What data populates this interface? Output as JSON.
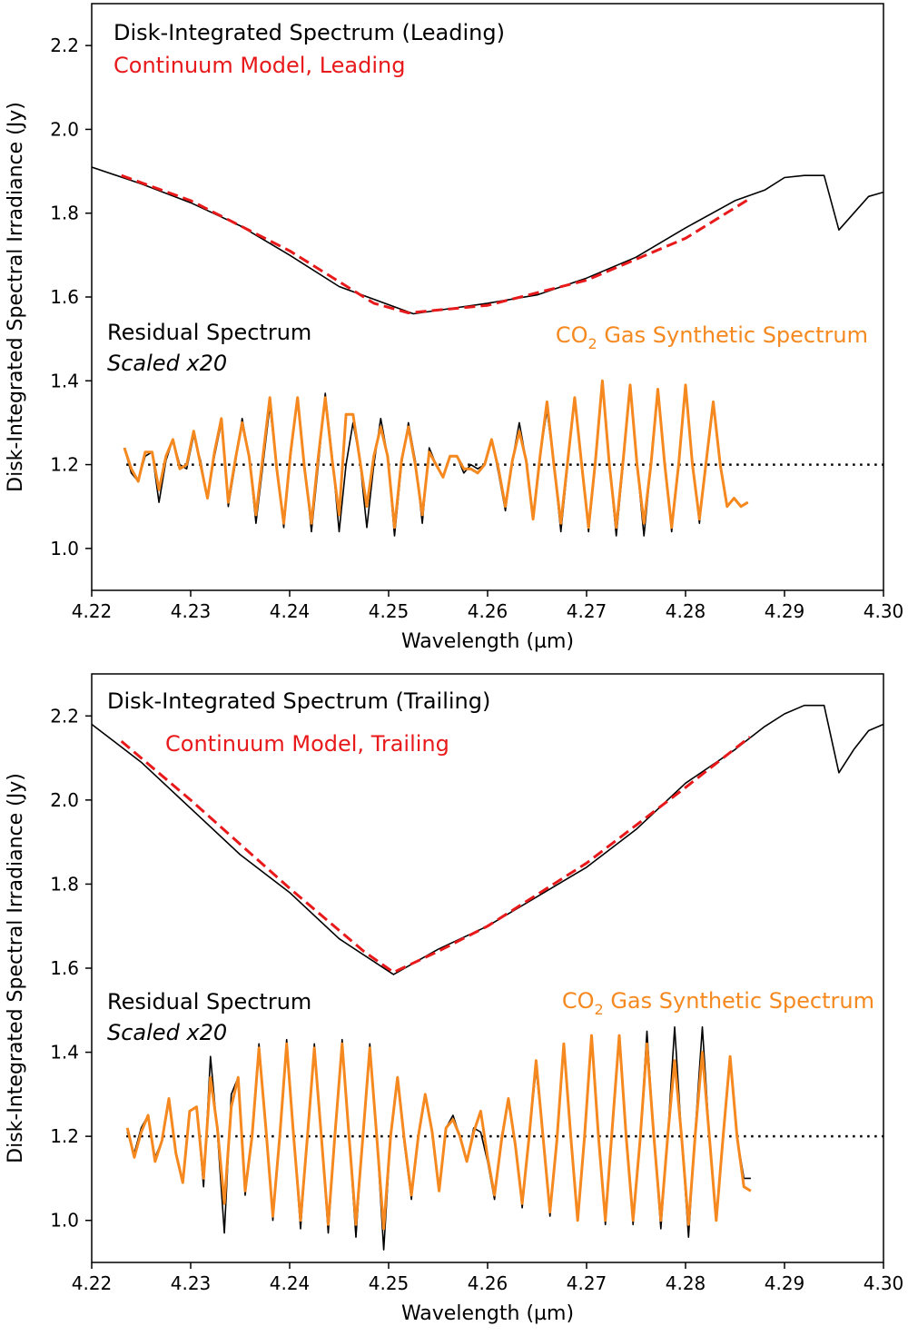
{
  "colors": {
    "observed": "#000000",
    "continuum": "#e8191a",
    "synthetic": "#f5891f",
    "baseline": "#000000"
  },
  "shared": {
    "ylabel": "Disk-Integrated Spectral Irradiance (Jy)",
    "xlabel": "Wavelength (µm)",
    "xticks": [
      "4.22",
      "4.23",
      "4.24",
      "4.25",
      "4.26",
      "4.27",
      "4.28",
      "4.29",
      "4.30"
    ],
    "yticks": [
      "1.0",
      "1.2",
      "1.4",
      "1.6",
      "1.8",
      "2.0",
      "2.2"
    ]
  },
  "chart_data": [
    {
      "type": "line",
      "xlabel": "Wavelength (µm)",
      "ylabel": "Disk-Integrated Spectral Irradiance (Jy)",
      "xlim": [
        4.22,
        4.3
      ],
      "ylim": [
        0.9,
        2.3
      ],
      "grid": false,
      "legend": "text annotations",
      "annotations": {
        "spectrum": "Disk-Integrated Spectrum (Leading)",
        "continuum": "Continuum Model, Leading",
        "residual": "Residual Spectrum",
        "scaled": "Scaled x20",
        "co2": "CO",
        "co2_sub": "2",
        "co2_rest": " Gas Synthetic Spectrum"
      },
      "baseline": 1.2,
      "series": [
        {
          "role": "spectrum",
          "x": [
            4.22,
            4.225,
            4.23,
            4.235,
            4.24,
            4.245,
            4.2525,
            4.26,
            4.265,
            4.27,
            4.275,
            4.28,
            4.285,
            4.288,
            4.29,
            4.292,
            4.294,
            4.2955,
            4.297,
            4.2985,
            4.3
          ],
          "y": [
            1.91,
            1.87,
            1.825,
            1.77,
            1.7,
            1.625,
            1.56,
            1.585,
            1.605,
            1.645,
            1.695,
            1.765,
            1.83,
            1.855,
            1.885,
            1.89,
            1.89,
            1.76,
            1.8,
            1.84,
            1.85
          ]
        },
        {
          "role": "continuum",
          "x": [
            4.223,
            4.23,
            4.24,
            4.2485,
            4.252,
            4.26,
            4.27,
            4.28,
            4.2865
          ],
          "y": [
            1.89,
            1.83,
            1.71,
            1.585,
            1.562,
            1.58,
            1.64,
            1.74,
            1.835
          ]
        },
        {
          "role": "residual",
          "x": [
            4.2233,
            4.224,
            4.2247,
            4.2254,
            4.2261,
            4.2268,
            4.2275,
            4.2282,
            4.2289,
            4.2296,
            4.2303,
            4.231,
            4.2317,
            4.2324,
            4.2331,
            4.2338,
            4.2345,
            4.2352,
            4.2359,
            4.2366,
            4.2373,
            4.238,
            4.2387,
            4.2394,
            4.2401,
            4.2408,
            4.2415,
            4.2422,
            4.2429,
            4.2436,
            4.2443,
            4.245,
            4.2457,
            4.2464,
            4.2471,
            4.2478,
            4.2485,
            4.2492,
            4.2499,
            4.2506,
            4.2513,
            4.252,
            4.2527,
            4.2534,
            4.2541,
            4.2548,
            4.2555,
            4.2562,
            4.2569,
            4.2576,
            4.2583,
            4.259,
            4.2597,
            4.2604,
            4.2611,
            4.2618,
            4.2625,
            4.2632,
            4.2639,
            4.2646,
            4.2653,
            4.266,
            4.2667,
            4.2674,
            4.2681,
            4.2688,
            4.2695,
            4.2702,
            4.2709,
            4.2716,
            4.2723,
            4.273,
            4.2737,
            4.2744,
            4.2751,
            4.2758,
            4.2765,
            4.2772,
            4.2779,
            4.2786,
            4.2793,
            4.28,
            4.2807,
            4.2814,
            4.2821,
            4.2828,
            4.2835,
            4.2842,
            4.2849,
            4.2856,
            4.2863
          ],
          "y": [
            1.24,
            1.18,
            1.16,
            1.22,
            1.23,
            1.11,
            1.21,
            1.26,
            1.2,
            1.19,
            1.27,
            1.21,
            1.12,
            1.22,
            1.3,
            1.1,
            1.2,
            1.31,
            1.22,
            1.06,
            1.2,
            1.34,
            1.19,
            1.05,
            1.22,
            1.36,
            1.2,
            1.04,
            1.2,
            1.37,
            1.22,
            1.04,
            1.2,
            1.3,
            1.21,
            1.05,
            1.2,
            1.31,
            1.22,
            1.03,
            1.2,
            1.3,
            1.21,
            1.06,
            1.24,
            1.2,
            1.17,
            1.22,
            1.22,
            1.18,
            1.2,
            1.19,
            1.2,
            1.26,
            1.18,
            1.09,
            1.21,
            1.3,
            1.21,
            1.08,
            1.22,
            1.33,
            1.2,
            1.04,
            1.2,
            1.36,
            1.2,
            1.04,
            1.2,
            1.39,
            1.2,
            1.03,
            1.2,
            1.39,
            1.2,
            1.03,
            1.2,
            1.37,
            1.2,
            1.04,
            1.2,
            1.38,
            1.2,
            1.06,
            1.21,
            1.34,
            1.2,
            1.1,
            1.12,
            1.1,
            1.11
          ]
        },
        {
          "role": "synthetic",
          "x": [
            4.2233,
            4.224,
            4.2247,
            4.2254,
            4.2261,
            4.2268,
            4.2275,
            4.2282,
            4.2289,
            4.2296,
            4.2303,
            4.231,
            4.2317,
            4.2324,
            4.2331,
            4.2338,
            4.2345,
            4.2352,
            4.2359,
            4.2366,
            4.2373,
            4.238,
            4.2387,
            4.2394,
            4.2401,
            4.2408,
            4.2415,
            4.2422,
            4.2429,
            4.2436,
            4.2443,
            4.245,
            4.2457,
            4.2464,
            4.2471,
            4.2478,
            4.2485,
            4.2492,
            4.2499,
            4.2506,
            4.2513,
            4.252,
            4.2527,
            4.2534,
            4.2541,
            4.2548,
            4.2555,
            4.2562,
            4.2569,
            4.2576,
            4.2583,
            4.259,
            4.2597,
            4.2604,
            4.2611,
            4.2618,
            4.2625,
            4.2632,
            4.2639,
            4.2646,
            4.2653,
            4.266,
            4.2667,
            4.2674,
            4.2681,
            4.2688,
            4.2695,
            4.2702,
            4.2709,
            4.2716,
            4.2723,
            4.273,
            4.2737,
            4.2744,
            4.2751,
            4.2758,
            4.2765,
            4.2772,
            4.2779,
            4.2786,
            4.2793,
            4.28,
            4.2807,
            4.2814,
            4.2821,
            4.2828,
            4.2835,
            4.2842,
            4.2849,
            4.2856,
            4.2863
          ],
          "y": [
            1.24,
            1.19,
            1.16,
            1.23,
            1.23,
            1.14,
            1.22,
            1.26,
            1.19,
            1.2,
            1.28,
            1.2,
            1.12,
            1.23,
            1.31,
            1.11,
            1.21,
            1.3,
            1.22,
            1.08,
            1.22,
            1.36,
            1.19,
            1.06,
            1.23,
            1.36,
            1.19,
            1.06,
            1.22,
            1.36,
            1.21,
            1.08,
            1.32,
            1.32,
            1.21,
            1.1,
            1.22,
            1.29,
            1.22,
            1.05,
            1.21,
            1.29,
            1.2,
            1.08,
            1.23,
            1.2,
            1.17,
            1.22,
            1.22,
            1.19,
            1.19,
            1.18,
            1.2,
            1.26,
            1.19,
            1.1,
            1.21,
            1.28,
            1.21,
            1.07,
            1.22,
            1.35,
            1.2,
            1.06,
            1.21,
            1.36,
            1.2,
            1.05,
            1.21,
            1.4,
            1.2,
            1.05,
            1.21,
            1.39,
            1.2,
            1.06,
            1.2,
            1.38,
            1.2,
            1.05,
            1.2,
            1.39,
            1.2,
            1.07,
            1.21,
            1.35,
            1.2,
            1.1,
            1.12,
            1.1,
            1.11
          ]
        }
      ]
    },
    {
      "type": "line",
      "xlabel": "Wavelength (µm)",
      "ylabel": "Disk-Integrated Spectral Irradiance (Jy)",
      "xlim": [
        4.22,
        4.3
      ],
      "ylim": [
        0.9,
        2.3
      ],
      "grid": false,
      "legend": "text annotations",
      "annotations": {
        "spectrum": "Disk-Integrated Spectrum (Trailing)",
        "continuum": "Continuum Model, Trailing",
        "residual": "Residual Spectrum",
        "scaled": "Scaled x20",
        "co2": "CO",
        "co2_sub": "2",
        "co2_rest": " Gas Synthetic Spectrum"
      },
      "baseline": 1.2,
      "series": [
        {
          "role": "spectrum",
          "x": [
            4.22,
            4.225,
            4.23,
            4.235,
            4.24,
            4.245,
            4.2505,
            4.255,
            4.26,
            4.265,
            4.27,
            4.275,
            4.28,
            4.285,
            4.288,
            4.29,
            4.292,
            4.294,
            4.2955,
            4.297,
            4.2985,
            4.3
          ],
          "y": [
            2.18,
            2.09,
            1.98,
            1.87,
            1.78,
            1.67,
            1.585,
            1.645,
            1.7,
            1.77,
            1.84,
            1.93,
            2.04,
            2.12,
            2.175,
            2.205,
            2.225,
            2.225,
            2.065,
            2.12,
            2.165,
            2.18
          ]
        },
        {
          "role": "continuum",
          "x": [
            4.223,
            4.23,
            4.24,
            4.2475,
            4.2505,
            4.255,
            4.26,
            4.27,
            4.28,
            4.2865
          ],
          "y": [
            2.14,
            2.0,
            1.79,
            1.64,
            1.59,
            1.64,
            1.7,
            1.85,
            2.03,
            2.15
          ]
        },
        {
          "role": "residual",
          "x": [
            4.2236,
            4.2243,
            4.225,
            4.2257,
            4.2264,
            4.2271,
            4.2278,
            4.2285,
            4.2292,
            4.2299,
            4.2306,
            4.2313,
            4.232,
            4.2327,
            4.2334,
            4.2341,
            4.2348,
            4.2355,
            4.2362,
            4.2369,
            4.2376,
            4.2383,
            4.239,
            4.2397,
            4.2404,
            4.2411,
            4.2418,
            4.2425,
            4.2432,
            4.2439,
            4.2446,
            4.2453,
            4.246,
            4.2467,
            4.2474,
            4.2481,
            4.2488,
            4.2495,
            4.2502,
            4.2509,
            4.2516,
            4.2523,
            4.253,
            4.2537,
            4.2544,
            4.2551,
            4.2558,
            4.2565,
            4.2572,
            4.2579,
            4.2586,
            4.2593,
            4.26,
            4.2607,
            4.2614,
            4.2621,
            4.2628,
            4.2635,
            4.2642,
            4.2649,
            4.2656,
            4.2663,
            4.267,
            4.2677,
            4.2684,
            4.2691,
            4.2698,
            4.2705,
            4.2712,
            4.2719,
            4.2726,
            4.2733,
            4.274,
            4.2747,
            4.2754,
            4.2761,
            4.2768,
            4.2775,
            4.2782,
            4.2789,
            4.2796,
            4.2803,
            4.281,
            4.2817,
            4.2824,
            4.2831,
            4.2838,
            4.2845,
            4.2852,
            4.2859,
            4.2866
          ],
          "y": [
            1.21,
            1.16,
            1.22,
            1.25,
            1.15,
            1.19,
            1.28,
            1.16,
            1.09,
            1.26,
            1.27,
            1.08,
            1.39,
            1.21,
            0.97,
            1.3,
            1.34,
            1.06,
            1.2,
            1.42,
            1.22,
            1.0,
            1.2,
            1.43,
            1.2,
            0.98,
            1.2,
            1.42,
            1.2,
            0.97,
            1.21,
            1.43,
            1.2,
            0.96,
            1.21,
            1.42,
            1.2,
            0.93,
            1.2,
            1.34,
            1.18,
            1.05,
            1.2,
            1.3,
            1.21,
            1.08,
            1.22,
            1.25,
            1.2,
            1.14,
            1.22,
            1.21,
            1.14,
            1.05,
            1.2,
            1.28,
            1.18,
            1.03,
            1.2,
            1.36,
            1.2,
            1.01,
            1.19,
            1.41,
            1.2,
            1.0,
            1.2,
            1.44,
            1.2,
            0.99,
            1.22,
            1.44,
            1.2,
            0.99,
            1.19,
            1.45,
            1.2,
            0.98,
            1.2,
            1.46,
            1.2,
            0.96,
            1.22,
            1.46,
            1.2,
            1.0,
            1.2,
            1.38,
            1.2,
            1.1,
            1.1
          ]
        },
        {
          "role": "synthetic",
          "x": [
            4.2236,
            4.2243,
            4.225,
            4.2257,
            4.2264,
            4.2271,
            4.2278,
            4.2285,
            4.2292,
            4.2299,
            4.2306,
            4.2313,
            4.232,
            4.2327,
            4.2334,
            4.2341,
            4.2348,
            4.2355,
            4.2362,
            4.2369,
            4.2376,
            4.2383,
            4.239,
            4.2397,
            4.2404,
            4.2411,
            4.2418,
            4.2425,
            4.2432,
            4.2439,
            4.2446,
            4.2453,
            4.246,
            4.2467,
            4.2474,
            4.2481,
            4.2488,
            4.2495,
            4.2502,
            4.2509,
            4.2516,
            4.2523,
            4.253,
            4.2537,
            4.2544,
            4.2551,
            4.2558,
            4.2565,
            4.2572,
            4.2579,
            4.2586,
            4.2593,
            4.26,
            4.2607,
            4.2614,
            4.2621,
            4.2628,
            4.2635,
            4.2642,
            4.2649,
            4.2656,
            4.2663,
            4.267,
            4.2677,
            4.2684,
            4.2691,
            4.2698,
            4.2705,
            4.2712,
            4.2719,
            4.2726,
            4.2733,
            4.274,
            4.2747,
            4.2754,
            4.2761,
            4.2768,
            4.2775,
            4.2782,
            4.2789,
            4.2796,
            4.2803,
            4.281,
            4.2817,
            4.2824,
            4.2831,
            4.2838,
            4.2845,
            4.2852,
            4.2859,
            4.2866
          ],
          "y": [
            1.22,
            1.15,
            1.21,
            1.25,
            1.14,
            1.19,
            1.29,
            1.16,
            1.09,
            1.26,
            1.27,
            1.1,
            1.34,
            1.22,
            1.04,
            1.27,
            1.34,
            1.07,
            1.2,
            1.41,
            1.22,
            1.01,
            1.2,
            1.42,
            1.2,
            1.0,
            1.2,
            1.41,
            1.2,
            0.99,
            1.21,
            1.42,
            1.2,
            0.99,
            1.2,
            1.41,
            1.2,
            0.98,
            1.2,
            1.34,
            1.19,
            1.06,
            1.2,
            1.3,
            1.21,
            1.07,
            1.22,
            1.24,
            1.2,
            1.14,
            1.21,
            1.26,
            1.15,
            1.06,
            1.19,
            1.29,
            1.18,
            1.04,
            1.2,
            1.38,
            1.2,
            1.02,
            1.19,
            1.42,
            1.2,
            1.0,
            1.2,
            1.44,
            1.2,
            1.0,
            1.22,
            1.44,
            1.2,
            1.0,
            1.19,
            1.42,
            1.2,
            1.0,
            1.2,
            1.38,
            1.2,
            0.99,
            1.21,
            1.4,
            1.2,
            1.0,
            1.2,
            1.39,
            1.2,
            1.08,
            1.07
          ]
        }
      ]
    }
  ]
}
